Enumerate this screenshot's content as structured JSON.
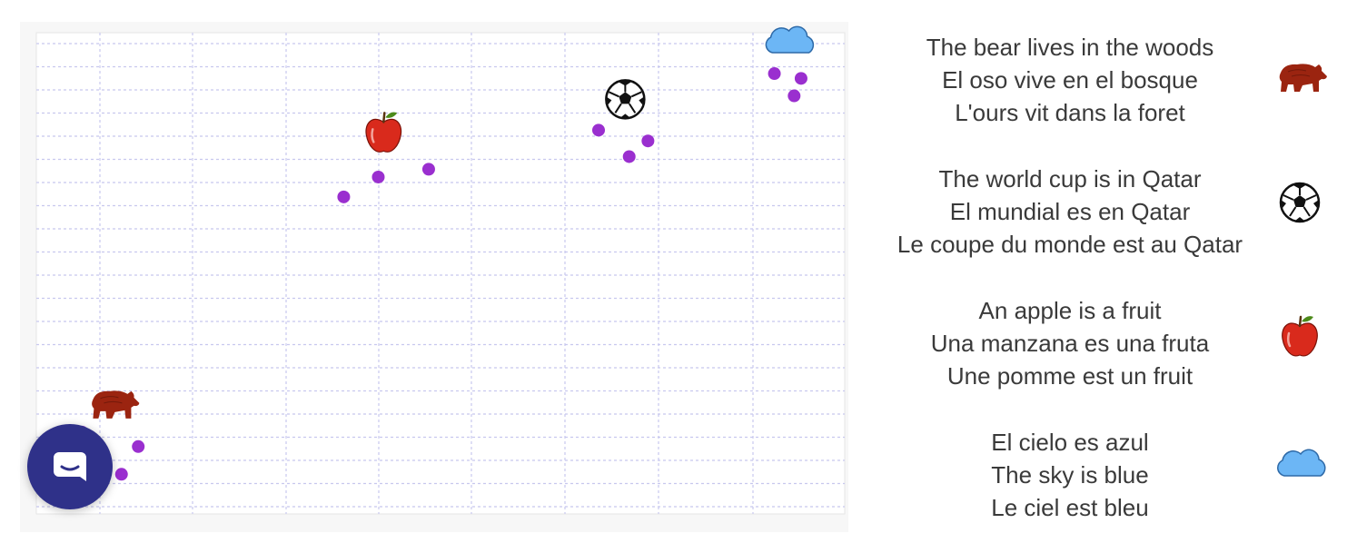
{
  "colors": {
    "dot": "#9a2fcf",
    "grid_dash": "#c8c8ee",
    "chat_button": "#2f3189",
    "bear": "#9b2410",
    "apple": "#d92a1c",
    "cloud": "#6cb6f5"
  },
  "chart_data": {
    "type": "scatter",
    "groups": [
      {
        "icon": "bear-icon",
        "points": [
          [
            -2.63,
            -2.67
          ],
          [
            -2.06,
            -2.91
          ],
          [
            -2.23,
            -3.37
          ]
        ]
      },
      {
        "icon": "apple-icon",
        "points": [
          [
            0.37,
            1.57
          ],
          [
            0.88,
            1.7
          ],
          [
            0.02,
            1.24
          ]
        ]
      },
      {
        "icon": "soccer-ball-icon",
        "points": [
          [
            2.6,
            2.35
          ],
          [
            3.1,
            2.17
          ],
          [
            2.91,
            1.91
          ]
        ]
      },
      {
        "icon": "cloud-icon",
        "points": [
          [
            4.38,
            3.29
          ],
          [
            4.65,
            3.21
          ],
          [
            4.58,
            2.92
          ]
        ]
      }
    ]
  },
  "legend": [
    {
      "icon": "bear-icon",
      "lines": [
        "The bear lives in the woods",
        "El oso vive en el bosque",
        "L'ours vit dans la foret"
      ]
    },
    {
      "icon": "soccer-ball-icon",
      "lines": [
        "The world cup is in Qatar",
        "El mundial es en Qatar",
        "Le coupe du monde est au Qatar"
      ]
    },
    {
      "icon": "apple-icon",
      "lines": [
        "An apple is a fruit",
        "Una manzana es una fruta",
        "Une pomme est un fruit"
      ]
    },
    {
      "icon": "cloud-icon",
      "lines": [
        "El cielo es azul",
        "The sky is blue",
        "Le ciel est bleu"
      ]
    }
  ]
}
